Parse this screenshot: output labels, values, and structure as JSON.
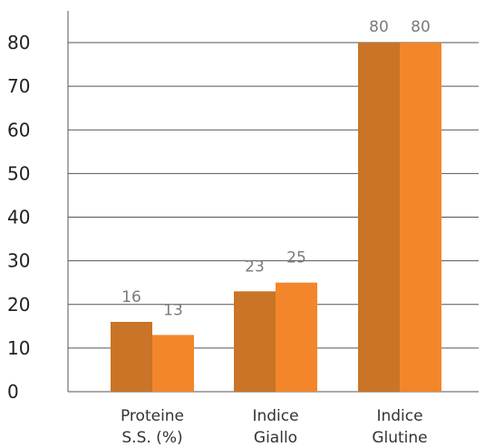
{
  "chart_data": {
    "type": "bar",
    "title": "",
    "xlabel": "",
    "ylabel": "",
    "categories": [
      [
        "Proteine",
        "S.S. (%)"
      ],
      [
        "Indice",
        "Giallo"
      ],
      [
        "Indice",
        "Glutine"
      ]
    ],
    "series": [
      {
        "values": [
          16,
          23,
          80
        ],
        "color": "#c97426"
      },
      {
        "values": [
          13,
          25,
          80
        ],
        "color": "#f3862b"
      }
    ],
    "ylim": [
      0,
      80
    ],
    "yticks": [
      0,
      10,
      20,
      30,
      40,
      50,
      60,
      70,
      80
    ],
    "grid": true,
    "legend": "none"
  }
}
